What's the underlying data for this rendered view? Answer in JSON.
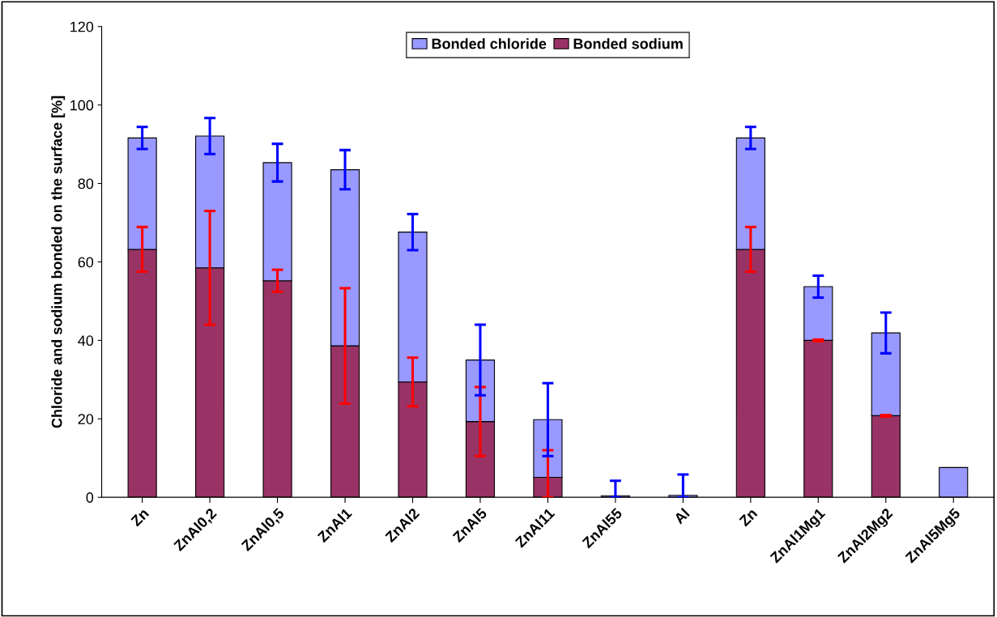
{
  "chart_data": {
    "type": "bar",
    "stacked": true,
    "ylabel": "Chloride and sodium bonded on the surface [%]",
    "categories": [
      "Zn",
      "ZnAl0,2",
      "ZnAl0,5",
      "ZnAl1",
      "ZnAl2",
      "ZnAl5",
      "ZnAl11",
      "ZnAl55",
      "Al",
      "Zn",
      "ZnAl1Mg1",
      "ZnAl2Mg2",
      "ZnAl5Mg5"
    ],
    "series": [
      {
        "name": "Bonded sodium",
        "color": "#993366",
        "values": [
          63.2,
          58.5,
          55.2,
          38.6,
          29.4,
          19.3,
          5.1,
          null,
          null,
          63.2,
          40.0,
          20.8,
          0
        ],
        "errors": [
          5.7,
          14.5,
          2.8,
          14.7,
          6.2,
          8.8,
          [
            0,
            12
          ],
          null,
          null,
          5.7,
          0.2,
          0.2,
          null
        ]
      },
      {
        "name": "Bonded chloride",
        "color": "#9999ff",
        "values": [
          28.4,
          33.6,
          30.1,
          44.9,
          38.2,
          15.7,
          14.7,
          0.4,
          0.5,
          28.4,
          13.7,
          21.1,
          7.6
        ],
        "errors": [
          2.8,
          4.6,
          4.8,
          5.0,
          4.6,
          9.0,
          9.3,
          [
            0,
            4.2
          ],
          [
            0,
            5.8
          ],
          2.8,
          2.8,
          5.2,
          null
        ]
      }
    ],
    "ylim": [
      0,
      120
    ],
    "yticks": [
      0,
      20,
      40,
      60,
      80,
      100,
      120
    ],
    "grid": false,
    "legend": "top"
  }
}
